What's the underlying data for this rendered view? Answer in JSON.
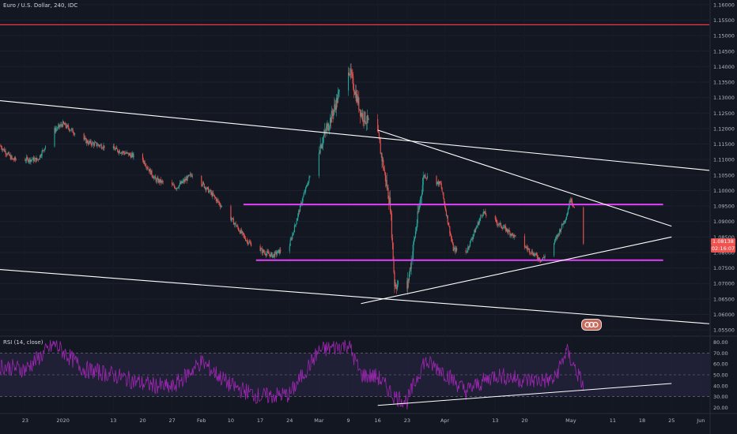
{
  "header": {
    "title": "Euro / U.S. Dollar, 240, IDC"
  },
  "rsi_panel": {
    "title": "RSI (14, close)"
  },
  "badges": {
    "last_price": "1.08138",
    "countdown": "02:16:07"
  },
  "logo": {
    "text": "",
    "icon": "tradingview-logo-icon"
  },
  "colors": {
    "background": "#131722",
    "up_candle": "#26a69a",
    "down_candle": "#ef5350",
    "trendline": "#ffffff",
    "magenta_level": "#e040fb",
    "resistance_red": "#f23645",
    "rsi_line": "#9c27b0",
    "rsi_band": "#7e57c2"
  },
  "chart_data": [
    {
      "type": "candlestick",
      "title": "Euro / U.S. Dollar, 240, IDC",
      "x_tick_labels": [
        "23",
        "2020",
        "13",
        "20",
        "27",
        "Feb",
        "10",
        "17",
        "24",
        "Mar",
        "9",
        "16",
        "23",
        "Apr",
        "13",
        "20",
        "May",
        "11",
        "18",
        "25",
        "Jun"
      ],
      "y_tick_labels": [
        "1.16000",
        "1.15500",
        "1.15000",
        "1.14500",
        "1.14000",
        "1.13500",
        "1.13000",
        "1.12500",
        "1.12000",
        "1.11500",
        "1.11000",
        "1.10500",
        "1.10000",
        "1.09500",
        "1.09000",
        "1.08500",
        "1.08000",
        "1.07500",
        "1.07000",
        "1.06500",
        "1.06000",
        "1.05500"
      ],
      "ylim": [
        1.0535,
        1.1615
      ],
      "x_range": [
        "2019-12-17",
        "2020-06-03"
      ],
      "series": [
        {
          "type": "line",
          "values_x": [
            "2019-12-17",
            "2019-12-20",
            "2019-12-26",
            "2019-12-30",
            "2020-01-01",
            "2020-01-07",
            "2020-01-13",
            "2020-01-20",
            "2020-01-23",
            "2020-01-28",
            "2020-02-01",
            "2020-02-06",
            "2020-02-10",
            "2020-02-14",
            "2020-02-18",
            "2020-02-20",
            "2020-02-24",
            "2020-02-27",
            "2020-03-02",
            "2020-03-05",
            "2020-03-09",
            "2020-03-12",
            "2020-03-16",
            "2020-03-19",
            "2020-03-20",
            "2020-03-23",
            "2020-03-27",
            "2020-03-31",
            "2020-04-03",
            "2020-04-06",
            "2020-04-10",
            "2020-04-16",
            "2020-04-20",
            "2020-04-24",
            "2020-04-27",
            "2020-04-30",
            "2020-05-01",
            "2020-05-04"
          ],
          "values_y": [
            1.1145,
            1.11,
            1.11,
            1.1195,
            1.1215,
            1.1155,
            1.1135,
            1.11,
            1.1035,
            1.101,
            1.1055,
            1.098,
            1.091,
            1.0835,
            1.08,
            1.079,
            1.0825,
            1.097,
            1.1135,
            1.124,
            1.14,
            1.125,
            1.118,
            1.095,
            1.07,
            1.0685,
            1.105,
            1.102,
            1.081,
            1.08,
            1.093,
            1.087,
            1.082,
            1.0775,
            1.083,
            1.092,
            1.098,
            1.0825
          ]
        }
      ],
      "horizontal_levels": [
        {
          "y": 1.1535,
          "color": "#f23645"
        },
        {
          "y": 1.0955,
          "color": "#e040fb"
        },
        {
          "y": 1.0775,
          "color": "#e040fb"
        }
      ],
      "trendlines": [
        {
          "from": [
            "2019-12-17",
            1.129
          ],
          "to": [
            "2020-06-03",
            1.1065
          ]
        },
        {
          "from": [
            "2019-12-17",
            1.0745
          ],
          "to": [
            "2020-06-03",
            1.057
          ]
        },
        {
          "from": [
            "2020-03-16",
            1.1195
          ],
          "to": [
            "2020-05-25",
            1.0885
          ]
        },
        {
          "from": [
            "2020-03-12",
            1.0635
          ],
          "to": [
            "2020-05-25",
            1.085
          ]
        }
      ]
    },
    {
      "type": "line",
      "title": "RSI (14, close)",
      "y_tick_labels": [
        "80.00",
        "70.00",
        "60.00",
        "50.00",
        "40.00",
        "30.00",
        "20.00"
      ],
      "ylim": [
        16,
        84
      ],
      "band": [
        30,
        70
      ],
      "x": [
        "2019-12-17",
        "2019-12-23",
        "2019-12-30",
        "2020-01-06",
        "2020-01-13",
        "2020-01-20",
        "2020-01-27",
        "2020-02-03",
        "2020-02-10",
        "2020-02-17",
        "2020-02-24",
        "2020-03-02",
        "2020-03-09",
        "2020-03-12",
        "2020-03-16",
        "2020-03-20",
        "2020-03-23",
        "2020-03-27",
        "2020-03-31",
        "2020-04-06",
        "2020-04-13",
        "2020-04-20",
        "2020-04-27",
        "2020-04-30",
        "2020-05-04"
      ],
      "values": [
        58,
        55,
        78,
        55,
        50,
        42,
        38,
        62,
        40,
        30,
        32,
        72,
        78,
        50,
        48,
        30,
        26,
        62,
        55,
        35,
        50,
        45,
        45,
        72,
        40
      ],
      "trendlines": [
        {
          "from": [
            "2020-03-16",
            22
          ],
          "to": [
            "2020-05-25",
            42
          ]
        }
      ]
    }
  ]
}
